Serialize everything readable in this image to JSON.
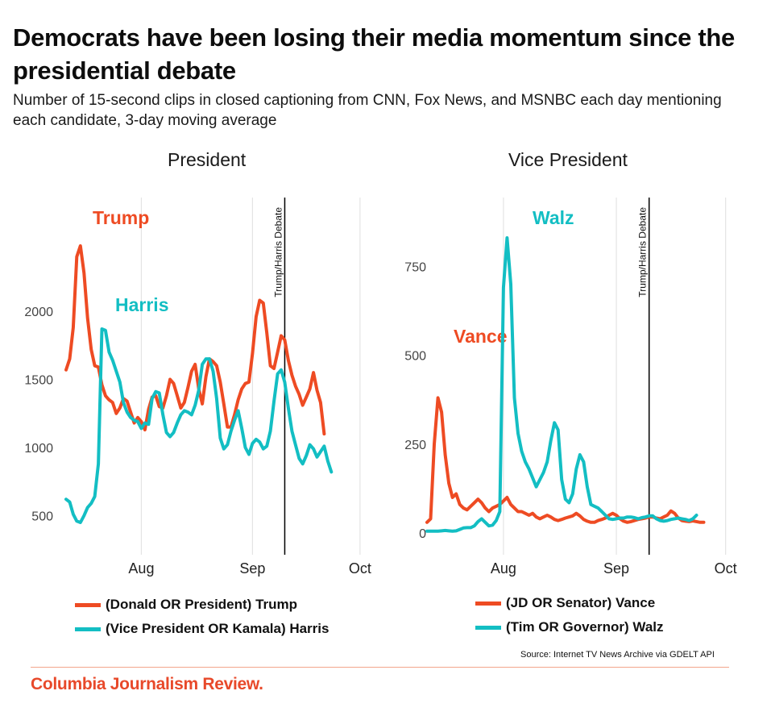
{
  "header": {
    "title": "Democrats have been losing their media momentum since the presidential debate",
    "subtitle": "Number of 15-second clips in closed captioning from CNN, Fox News, and MSNBC each day mentioning each candidate, 3-day moving average"
  },
  "colors": {
    "republican": "#ee4b23",
    "democrat": "#13bec3",
    "gridline": "#e4e4e4",
    "event_line": "#000000",
    "axis_text": "#444444",
    "brand": "#e8492a"
  },
  "source": "Source: Internet TV News Archive via GDELT API",
  "brand": "Columbia Journalism Review.",
  "chart_data": [
    {
      "type": "line",
      "title": "President",
      "xlabel": "",
      "ylabel": "",
      "x_start": "Jul 11",
      "x_end": "Sep 29",
      "x_ticks": [
        {
          "label": "Aug",
          "day": 21
        },
        {
          "label": "Sep",
          "day": 52
        },
        {
          "label": "Oct",
          "day": 82
        }
      ],
      "y_ticks": [
        500,
        1000,
        1500,
        2000
      ],
      "ylim": [
        340,
        2620
      ],
      "xlim_days": [
        0,
        82
      ],
      "grid": "vertical",
      "event": {
        "label": "Trump/Harris Debate",
        "day": 61
      },
      "series": [
        {
          "name": "(Donald OR President) Trump",
          "inline_label": "Trump",
          "color_key": "republican",
          "values": [
            1570,
            1650,
            1880,
            2400,
            2480,
            2280,
            1950,
            1720,
            1600,
            1590,
            1460,
            1380,
            1350,
            1330,
            1250,
            1290,
            1360,
            1340,
            1260,
            1180,
            1220,
            1190,
            1130,
            1280,
            1370,
            1380,
            1300,
            1290,
            1380,
            1500,
            1470,
            1380,
            1290,
            1330,
            1440,
            1560,
            1610,
            1430,
            1320,
            1520,
            1650,
            1630,
            1600,
            1480,
            1320,
            1150,
            1150,
            1240,
            1350,
            1430,
            1470,
            1480,
            1690,
            1960,
            2080,
            2060,
            1840,
            1600,
            1580,
            1700,
            1820,
            1790,
            1640,
            1530,
            1450,
            1390,
            1310,
            1370,
            1430,
            1550,
            1420,
            1330,
            1100
          ]
        },
        {
          "name": "(Vice President OR Kamala) Harris",
          "inline_label": "Harris",
          "color_key": "democrat",
          "values": [
            620,
            600,
            510,
            460,
            450,
            500,
            560,
            590,
            640,
            880,
            1870,
            1860,
            1700,
            1640,
            1560,
            1480,
            1330,
            1260,
            1220,
            1200,
            1190,
            1140,
            1180,
            1170,
            1360,
            1410,
            1400,
            1240,
            1110,
            1080,
            1110,
            1180,
            1240,
            1270,
            1260,
            1240,
            1310,
            1420,
            1610,
            1650,
            1650,
            1560,
            1360,
            1070,
            990,
            1020,
            1120,
            1200,
            1270,
            1140,
            1000,
            950,
            1030,
            1060,
            1040,
            990,
            1010,
            1120,
            1340,
            1540,
            1570,
            1480,
            1290,
            1120,
            1020,
            920,
            880,
            940,
            1020,
            990,
            930,
            970,
            1010,
            900,
            820
          ]
        }
      ]
    },
    {
      "type": "line",
      "title": "Vice President",
      "xlabel": "",
      "ylabel": "",
      "x_start": "Jul 11",
      "x_end": "Sep 29",
      "x_ticks": [
        {
          "label": "Aug",
          "day": 21
        },
        {
          "label": "Sep",
          "day": 52
        },
        {
          "label": "Oct",
          "day": 82
        }
      ],
      "y_ticks": [
        0,
        250,
        500,
        750
      ],
      "ylim": [
        -30,
        930
      ],
      "xlim_days": [
        0,
        82
      ],
      "grid": "vertical",
      "event": {
        "label": "Trump/Harris Debate",
        "day": 61
      },
      "series": [
        {
          "name": "(JD OR Senator) Vance",
          "inline_label": "Vance",
          "color_key": "republican",
          "values": [
            30,
            40,
            250,
            380,
            340,
            220,
            140,
            100,
            110,
            80,
            70,
            65,
            75,
            85,
            95,
            85,
            70,
            60,
            70,
            75,
            80,
            90,
            100,
            80,
            70,
            60,
            60,
            55,
            50,
            55,
            45,
            40,
            45,
            50,
            45,
            38,
            35,
            38,
            42,
            45,
            48,
            55,
            48,
            38,
            33,
            30,
            30,
            35,
            38,
            42,
            50,
            55,
            50,
            40,
            33,
            30,
            32,
            35,
            38,
            40,
            42,
            45,
            45,
            42,
            40,
            45,
            50,
            62,
            55,
            42,
            35,
            33,
            32,
            34,
            32,
            30,
            30
          ]
        },
        {
          "name": "(Tim OR Governor) Walz",
          "inline_label": "Walz",
          "color_key": "democrat",
          "values": [
            5,
            5,
            5,
            5,
            6,
            7,
            6,
            5,
            6,
            10,
            14,
            15,
            15,
            20,
            32,
            40,
            30,
            20,
            22,
            35,
            60,
            690,
            830,
            700,
            380,
            280,
            230,
            200,
            180,
            155,
            130,
            150,
            170,
            200,
            260,
            310,
            290,
            150,
            95,
            85,
            110,
            180,
            220,
            200,
            130,
            80,
            75,
            70,
            60,
            50,
            40,
            38,
            40,
            42,
            42,
            45,
            45,
            43,
            40,
            43,
            45,
            48,
            48,
            40,
            35,
            33,
            35,
            38,
            40,
            42,
            40,
            38,
            35,
            40,
            50
          ]
        }
      ]
    }
  ],
  "panels": [
    {
      "title": "President"
    },
    {
      "title": "Vice President"
    }
  ],
  "legend": {
    "president": [
      {
        "label": "(Donald OR President) Trump",
        "color": "#ee4b23"
      },
      {
        "label": "(Vice President OR Kamala) Harris",
        "color": "#13bec3"
      }
    ],
    "vice_president": [
      {
        "label": "(JD OR Senator) Vance",
        "color": "#ee4b23"
      },
      {
        "label": "(Tim OR Governor) Walz",
        "color": "#13bec3"
      }
    ]
  }
}
